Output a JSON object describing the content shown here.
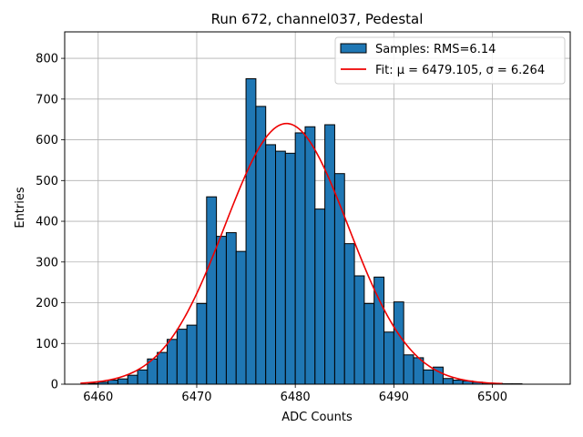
{
  "chart_data": {
    "type": "bar",
    "title": "Run 672, channel037, Pedestal",
    "xlabel": "ADC Counts",
    "ylabel": "Entries",
    "xlim": [
      6456.6,
      6507.9
    ],
    "ylim": [
      0,
      865
    ],
    "grid": true,
    "bin_width": 1,
    "bin_edges_start": 6458,
    "x_ticks": [
      6460,
      6470,
      6480,
      6490,
      6500
    ],
    "y_ticks": [
      0,
      100,
      200,
      300,
      400,
      500,
      600,
      700,
      800
    ],
    "histogram": {
      "name": "Samples: RMS=6.14",
      "color": "#1f77b4",
      "edgecolor": "#000000",
      "values": [
        0,
        2,
        5,
        10,
        13,
        22,
        35,
        62,
        78,
        110,
        135,
        145,
        198,
        460,
        363,
        372,
        326,
        750,
        682,
        588,
        572,
        567,
        617,
        632,
        430,
        637,
        517,
        345,
        266,
        198,
        263,
        128,
        202,
        72,
        65,
        35,
        42,
        14,
        10,
        8,
        5,
        3,
        2,
        1,
        1,
        0,
        0,
        0
      ]
    },
    "fit": {
      "name": "Fit: μ = 6479.105, σ = 6.264",
      "color": "#ee0000",
      "mu": 6479.105,
      "sigma": 6.264,
      "amplitude": 640,
      "x_range": [
        6458.2,
        6501.0
      ]
    },
    "legend": {
      "location": "top-right",
      "entries": [
        "Samples: RMS=6.14",
        "Fit: μ = 6479.105, σ = 6.264"
      ]
    }
  }
}
